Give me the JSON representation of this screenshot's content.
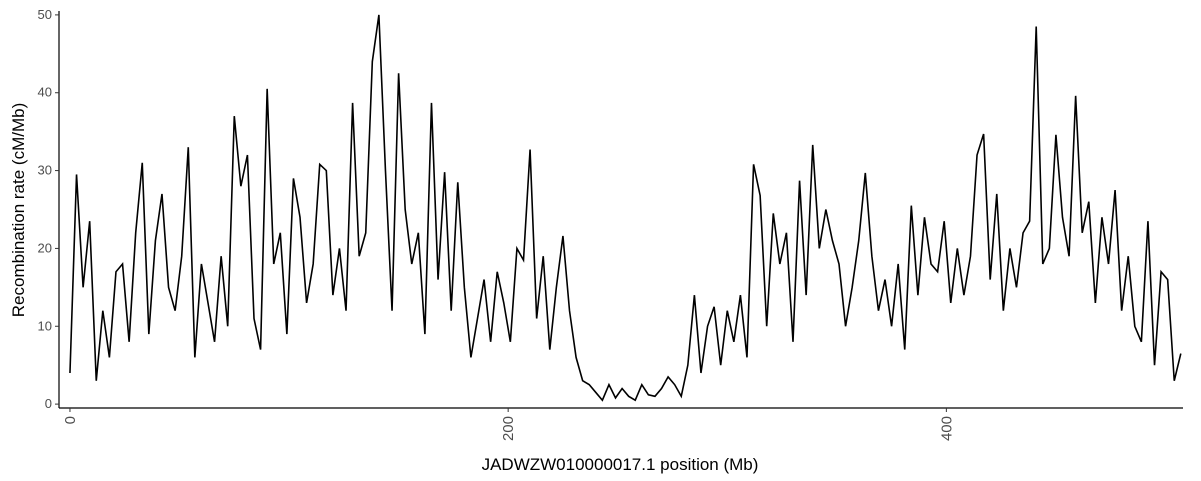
{
  "chart_data": {
    "type": "line",
    "x_label": "JADWZW010000017.1 position (Mb)",
    "y_label": "Recombination rate (cM/Mb)",
    "xlim": [
      -5,
      508
    ],
    "ylim": [
      -0.5,
      50.5
    ],
    "xticks": [
      0,
      200,
      400
    ],
    "yticks": [
      0,
      10,
      20,
      30,
      40,
      50
    ],
    "grid": false,
    "series": [
      {
        "color": "#000000",
        "x": [
          0,
          3,
          6,
          9,
          12,
          15,
          18,
          21,
          24,
          27,
          30,
          33,
          36,
          39,
          42,
          45,
          48,
          51,
          54,
          57,
          60,
          63,
          66,
          69,
          72,
          75,
          78,
          81,
          84,
          87,
          90,
          93,
          96,
          99,
          102,
          105,
          108,
          111,
          114,
          117,
          120,
          123,
          126,
          129,
          132,
          135,
          138,
          141,
          144,
          147,
          150,
          153,
          156,
          159,
          162,
          165,
          168,
          171,
          174,
          177,
          180,
          183,
          186,
          189,
          192,
          195,
          198,
          201,
          204,
          207,
          210,
          213,
          216,
          219,
          222,
          225,
          228,
          231,
          234,
          237,
          240,
          243,
          246,
          249,
          252,
          255,
          258,
          261,
          264,
          267,
          270,
          273,
          276,
          279,
          282,
          285,
          288,
          291,
          294,
          297,
          300,
          303,
          306,
          309,
          312,
          315,
          318,
          321,
          324,
          327,
          330,
          333,
          336,
          339,
          342,
          345,
          348,
          351,
          354,
          357,
          360,
          363,
          366,
          369,
          372,
          375,
          378,
          381,
          384,
          387,
          390,
          393,
          396,
          399,
          402,
          405,
          408,
          411,
          414,
          417,
          420,
          423,
          426,
          429,
          432,
          435,
          438,
          441,
          444,
          447,
          450,
          453,
          456,
          459,
          462,
          465,
          468,
          471,
          474,
          477,
          480,
          483,
          486,
          489,
          492,
          495,
          498,
          501,
          504,
          507
        ],
        "values": [
          4,
          29.5,
          15,
          23.5,
          3,
          12,
          6,
          17,
          18,
          8,
          22,
          31,
          9,
          21,
          27,
          15,
          12,
          19,
          33,
          6,
          18,
          13,
          8,
          19,
          10,
          37,
          28,
          32,
          11,
          7,
          40.5,
          18,
          22,
          9,
          29,
          24,
          13,
          18,
          30.8,
          30,
          14,
          20,
          12,
          38.7,
          19,
          22,
          44,
          50,
          30,
          12,
          42.5,
          25,
          18,
          22,
          9,
          38.7,
          16,
          29.8,
          12,
          28.5,
          15,
          6,
          11,
          16,
          8,
          17,
          13,
          8,
          20,
          18.5,
          32.7,
          11,
          19,
          7,
          15,
          21.6,
          12,
          6,
          3,
          2.5,
          1.5,
          0.5,
          2.5,
          0.8,
          2,
          1,
          0.5,
          2.5,
          1.2,
          1,
          2,
          3.5,
          2.5,
          1,
          5,
          14,
          4,
          10,
          12.5,
          5,
          12,
          8,
          14,
          6,
          30.8,
          26.8,
          10,
          24.5,
          18,
          22,
          8,
          28.7,
          14,
          33.3,
          20,
          25,
          21,
          18,
          10,
          15,
          21,
          29.7,
          19,
          12,
          16,
          10,
          18,
          7,
          25.5,
          14,
          24,
          18,
          17,
          23.5,
          13,
          20,
          14,
          19,
          32,
          34.7,
          16,
          27,
          12,
          20,
          15,
          22,
          23.5,
          48.5,
          18,
          20,
          34.6,
          24,
          19,
          39.6,
          22,
          26,
          13,
          24,
          18,
          27.5,
          12,
          19,
          10,
          8,
          23.5,
          5,
          17,
          16,
          3,
          6.5
        ]
      }
    ]
  }
}
